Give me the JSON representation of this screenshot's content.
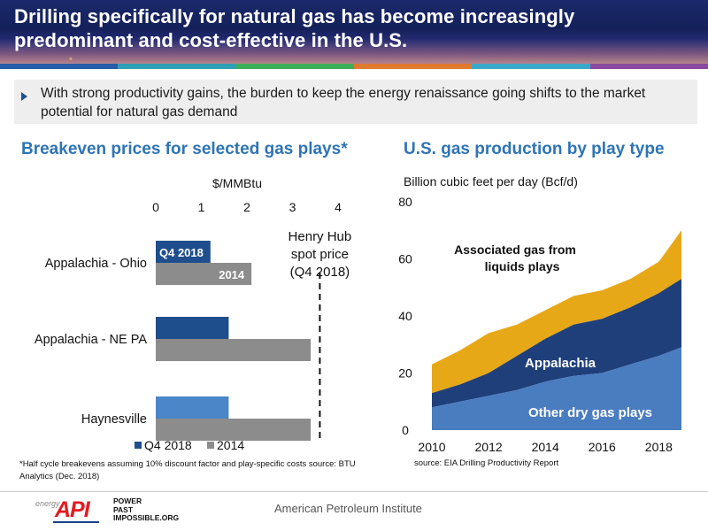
{
  "header": {
    "title": "Drilling specifically for natural gas has become increasingly predominant and cost-effective in the U.S.",
    "strip_colors": [
      "#2a5da8",
      "#2e9fb5",
      "#3fae59",
      "#e07a2f",
      "#3aa9c9",
      "#8a4aa0"
    ]
  },
  "bullet": {
    "text": "With strong productivity gains, the burden to keep the energy renaissance going shifts to the market potential for natural gas demand"
  },
  "left_chart": {
    "section_title": "Breakeven prices for selected gas plays*",
    "footnote": "*Half cycle breakevens assuming 10% discount factor and play-specific costs source: BTU Analytics (Dec. 2018)"
  },
  "right_chart": {
    "section_title": "U.S. gas production by play type",
    "source": "source:  EIA Drilling Productivity Report"
  },
  "footer": {
    "energy_text": "energy",
    "logo_text": "API",
    "tagline_lines": [
      "POWER",
      "PAST",
      "IMPOSSIBLE.ORG"
    ],
    "org": "American Petroleum Institute"
  },
  "chart_data": [
    {
      "type": "bar",
      "orientation": "horizontal",
      "title": "Breakeven prices for selected gas plays*",
      "xlabel": "$/MMBtu",
      "xlim": [
        0,
        4
      ],
      "x_ticks": [
        "0",
        "1",
        "2",
        "3",
        "4"
      ],
      "categories": [
        "Appalachia - Ohio",
        "Appalachia - NE PA",
        "Haynesville"
      ],
      "series": [
        {
          "name": "Q4 2018",
          "values": [
            1.2,
            1.6,
            1.6
          ],
          "color": "#1f4e8c"
        },
        {
          "name": "2014",
          "values": [
            2.1,
            3.4,
            3.4
          ],
          "color": "#8c8c8c"
        }
      ],
      "bar_labels": {
        "Q4 2018": "Q4 2018",
        "2014": "2014"
      },
      "highlight_bar_color": "#4a86c8",
      "reference_line": {
        "value": 3.6,
        "label_lines": [
          "Henry Hub",
          "spot price",
          "(Q4 2018)"
        ]
      },
      "legend": [
        "Q4 2018",
        "2014"
      ]
    },
    {
      "type": "area",
      "stacked": true,
      "title": "U.S. gas production by play type",
      "ylabel": "Billion cubic feet per day (Bcf/d)",
      "xlim": [
        2010,
        2018.8
      ],
      "ylim": [
        0,
        80
      ],
      "x_ticks": [
        "2010",
        "2012",
        "2014",
        "2016",
        "2018"
      ],
      "y_ticks": [
        "0",
        "20",
        "40",
        "60",
        "80"
      ],
      "x": [
        2010,
        2011,
        2012,
        2013,
        2014,
        2015,
        2016,
        2017,
        2018,
        2018.8
      ],
      "series": [
        {
          "name": "Other dry gas plays",
          "values": [
            8,
            10,
            12,
            14,
            17,
            19,
            20,
            23,
            26,
            29
          ],
          "color": "#4a7cc0"
        },
        {
          "name": "Appalachia",
          "values": [
            5,
            6,
            8,
            12,
            15,
            18,
            19,
            20,
            22,
            24
          ],
          "color": "#1f3f7a"
        },
        {
          "name": "Associated gas from liquids plays",
          "values": [
            10,
            12,
            14,
            11,
            10,
            10,
            10,
            10,
            11,
            17
          ],
          "color": "#e7a817"
        }
      ],
      "area_labels": {
        "assoc_lines": [
          "Associated gas from",
          "liquids plays"
        ],
        "appalachia": "Appalachia",
        "other": "Other dry gas plays"
      }
    }
  ]
}
